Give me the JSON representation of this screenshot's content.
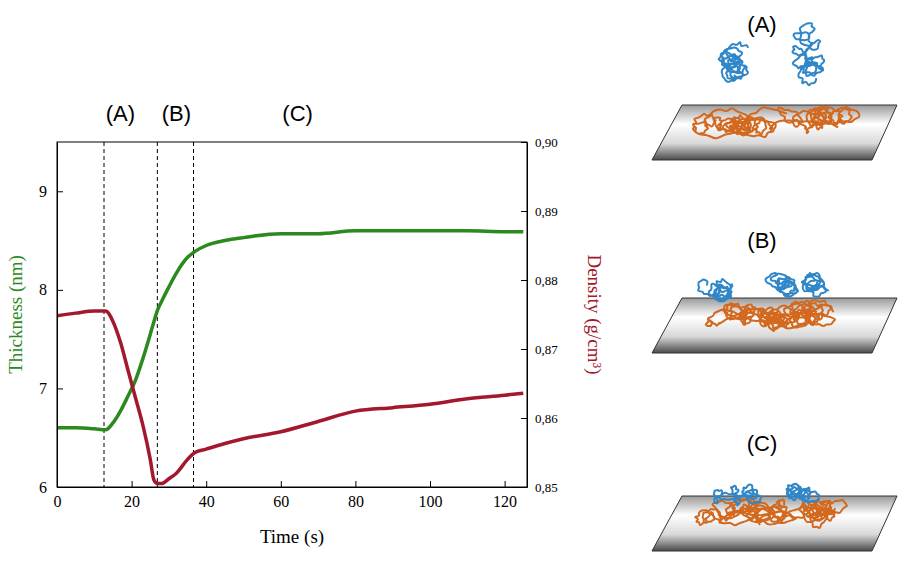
{
  "chart_data": {
    "type": "line",
    "x_label": "Time (s)",
    "y_label": "Thickness (nm)",
    "y2_label": "Density (g/cm³)",
    "xlim": [
      0,
      126
    ],
    "xticks": [
      0,
      20,
      40,
      60,
      80,
      100,
      120
    ],
    "ylim": [
      6,
      9.5
    ],
    "yticks": [
      6,
      7,
      8,
      9
    ],
    "y2lim": [
      0.85,
      0.9
    ],
    "y2ticks": [
      {
        "value": 0.85,
        "label": "0,85"
      },
      {
        "value": 0.86,
        "label": "0,86"
      },
      {
        "value": 0.87,
        "label": "0,87"
      },
      {
        "value": 0.88,
        "label": "0,88"
      },
      {
        "value": 0.89,
        "label": "0,89"
      },
      {
        "value": 0.9,
        "label": "0,90"
      }
    ],
    "x": [
      0,
      5,
      10,
      13,
      15,
      17,
      19,
      21,
      23,
      25,
      26,
      27,
      28,
      30,
      32,
      35,
      37,
      40,
      45,
      50,
      60,
      70,
      80,
      90,
      100,
      110,
      120,
      125
    ],
    "series": [
      {
        "color": "#2a8a1e",
        "axis": "y",
        "values": [
          6.6,
          6.6,
          6.59,
          6.58,
          6.65,
          6.77,
          6.92,
          7.08,
          7.3,
          7.55,
          7.68,
          7.8,
          7.88,
          8.03,
          8.17,
          8.33,
          8.39,
          8.45,
          8.5,
          8.53,
          8.57,
          8.57,
          8.6,
          8.6,
          8.6,
          8.6,
          8.59,
          8.59
        ]
      },
      {
        "color": "#a3182c",
        "axis": "y2",
        "values": [
          0.8748,
          0.8752,
          0.8755,
          0.8755,
          0.874,
          0.871,
          0.867,
          0.863,
          0.859,
          0.854,
          0.851,
          0.8505,
          0.8505,
          0.8512,
          0.852,
          0.854,
          0.855,
          0.8555,
          0.8563,
          0.857,
          0.858,
          0.8595,
          0.861,
          0.8615,
          0.862,
          0.8628,
          0.8633,
          0.8636
        ]
      }
    ],
    "phase_boundaries": [
      12.6,
      26.9,
      36.6
    ],
    "annotations": [
      {
        "text": "(A)",
        "x": 17
      },
      {
        "text": "(B)",
        "x": 32
      },
      {
        "text": "(C)",
        "x": 64.5
      }
    ]
  },
  "schematic": {
    "panels": [
      "(A)",
      "(B)",
      "(C)"
    ]
  }
}
